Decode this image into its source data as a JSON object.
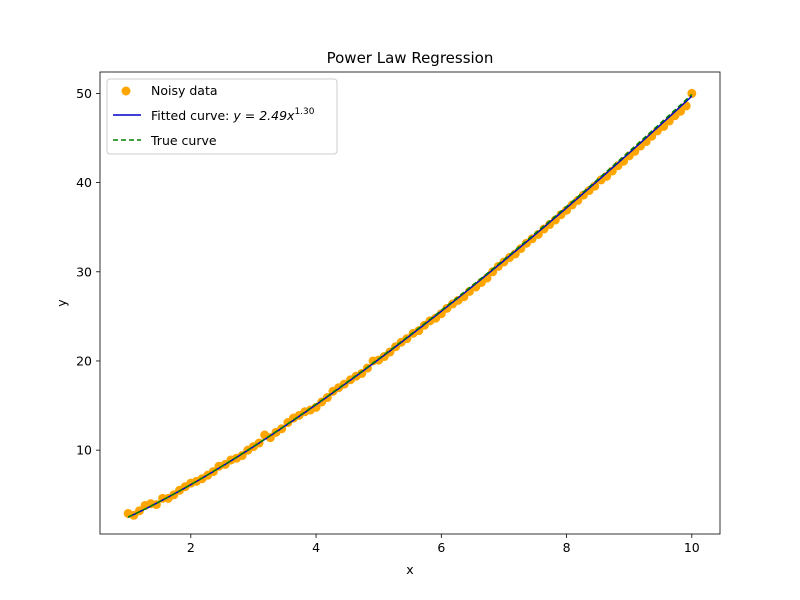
{
  "chart_data": {
    "type": "scatter",
    "title": "Power Law Regression",
    "xlabel": "x",
    "ylabel": "y",
    "xlim": [
      0.55,
      10.45
    ],
    "ylim": [
      0.6,
      52.4
    ],
    "xticks": [
      2,
      4,
      6,
      8,
      10
    ],
    "yticks": [
      10,
      20,
      30,
      40,
      50
    ],
    "grid": false,
    "legend_position": "upper-left",
    "legend": {
      "scatter_label": "Noisy data",
      "fit_label_prefix": "Fitted curve: ",
      "fit_label_math": "y = 2.49x",
      "fit_label_exponent": "1.30",
      "true_label": "True curve"
    },
    "fit": {
      "a": 2.49,
      "b": 1.3
    },
    "true_curve": {
      "a": 2.5,
      "b": 1.3
    },
    "series": [
      {
        "name": "Noisy data",
        "color": "#FFA500",
        "x": [
          1.0,
          1.09,
          1.18,
          1.27,
          1.36,
          1.45,
          1.55,
          1.64,
          1.73,
          1.82,
          1.91,
          2.0,
          2.09,
          2.18,
          2.27,
          2.36,
          2.45,
          2.55,
          2.64,
          2.73,
          2.82,
          2.91,
          3.0,
          3.09,
          3.18,
          3.27,
          3.36,
          3.45,
          3.55,
          3.64,
          3.73,
          3.82,
          3.91,
          4.0,
          4.09,
          4.18,
          4.27,
          4.36,
          4.45,
          4.55,
          4.64,
          4.73,
          4.82,
          4.91,
          5.0,
          5.09,
          5.18,
          5.27,
          5.36,
          5.45,
          5.55,
          5.64,
          5.73,
          5.82,
          5.91,
          6.0,
          6.09,
          6.18,
          6.27,
          6.36,
          6.45,
          6.55,
          6.64,
          6.73,
          6.82,
          6.91,
          7.0,
          7.09,
          7.18,
          7.27,
          7.36,
          7.45,
          7.55,
          7.64,
          7.73,
          7.82,
          7.91,
          8.0,
          8.09,
          8.18,
          8.27,
          8.36,
          8.45,
          8.55,
          8.64,
          8.73,
          8.82,
          8.91,
          9.0,
          9.09,
          9.18,
          9.27,
          9.36,
          9.45,
          9.55,
          9.64,
          9.73,
          9.82,
          9.91,
          10.0
        ],
        "y": [
          2.9,
          2.7,
          3.2,
          3.8,
          4.0,
          3.9,
          4.6,
          4.6,
          5.0,
          5.5,
          5.9,
          6.3,
          6.5,
          6.8,
          7.2,
          7.6,
          8.2,
          8.4,
          8.9,
          9.1,
          9.4,
          10.0,
          10.4,
          10.8,
          11.7,
          11.4,
          12.0,
          12.4,
          13.1,
          13.6,
          13.9,
          14.3,
          14.5,
          14.8,
          15.4,
          15.9,
          16.6,
          17.0,
          17.4,
          17.9,
          18.3,
          18.6,
          19.2,
          20.0,
          20.1,
          20.5,
          21.0,
          21.6,
          22.1,
          22.5,
          23.1,
          23.4,
          24.0,
          24.5,
          24.8,
          25.3,
          25.9,
          26.4,
          26.8,
          27.2,
          27.8,
          28.3,
          28.8,
          29.3,
          30.0,
          30.6,
          31.1,
          31.6,
          32.0,
          32.6,
          33.2,
          33.7,
          34.2,
          34.8,
          35.3,
          35.8,
          36.4,
          36.9,
          37.5,
          38.0,
          38.6,
          39.1,
          39.6,
          40.3,
          40.7,
          41.3,
          41.9,
          42.4,
          43.0,
          43.5,
          44.1,
          44.6,
          45.2,
          45.8,
          46.3,
          46.9,
          47.5,
          48.0,
          48.6,
          50.0
        ]
      },
      {
        "name": "Fitted curve",
        "color": "#0000CC",
        "style": "solid"
      },
      {
        "name": "True curve",
        "color": "#008000",
        "style": "dashed"
      }
    ]
  }
}
